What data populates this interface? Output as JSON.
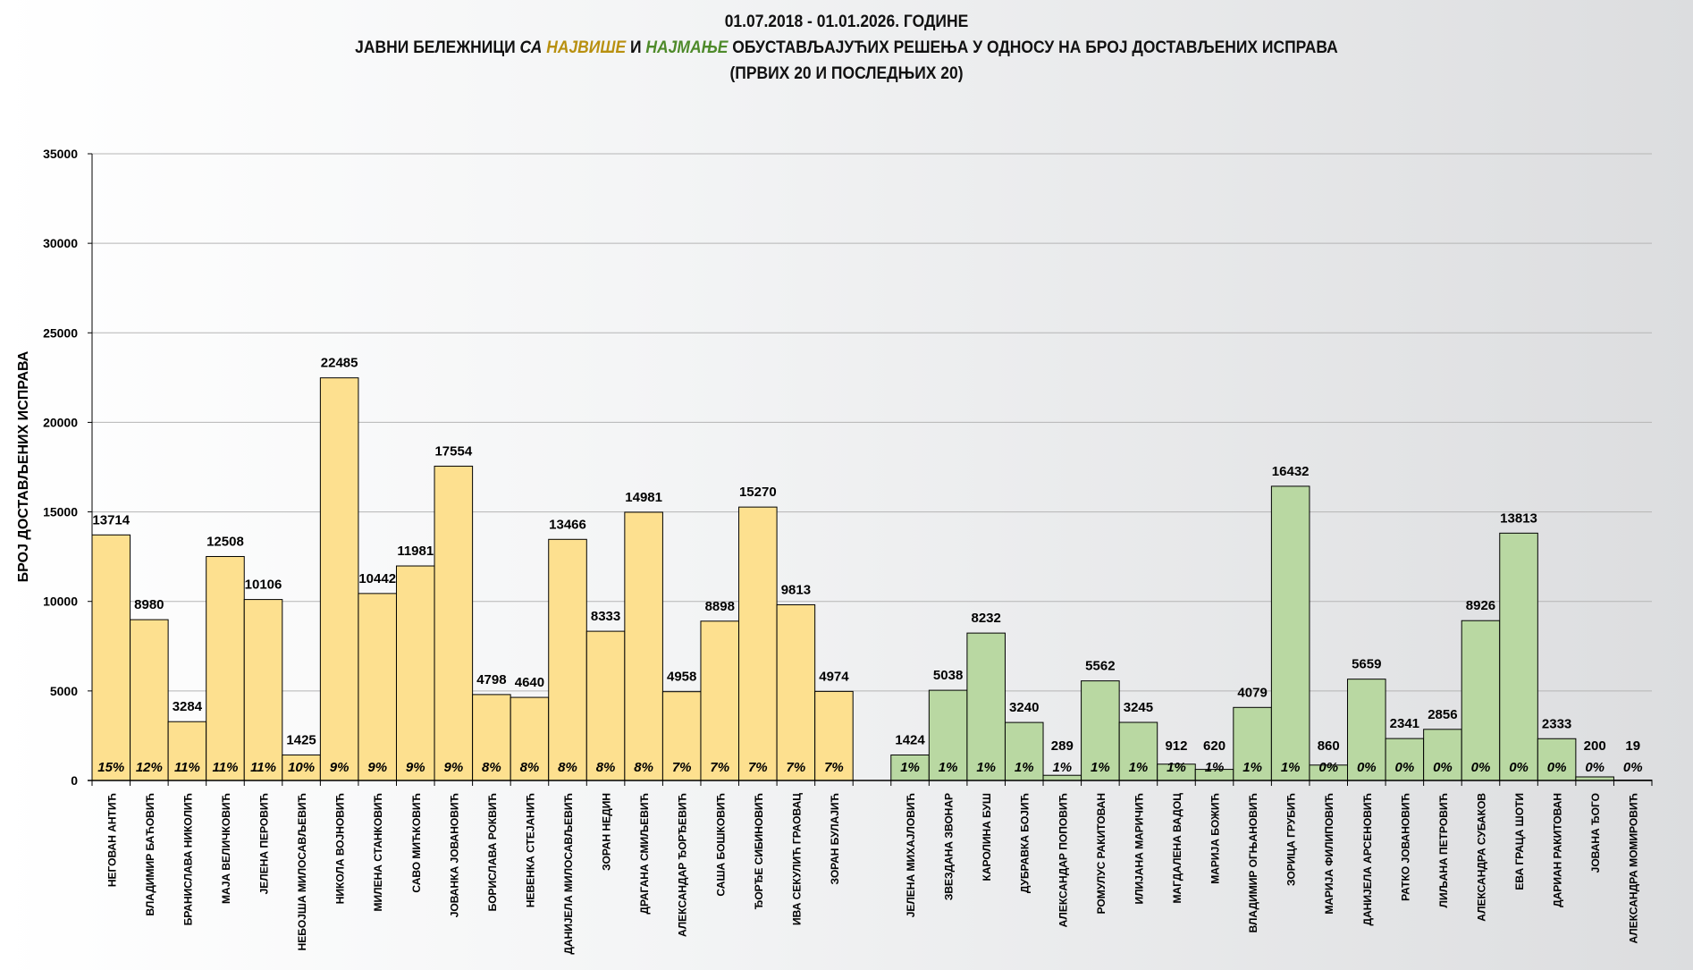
{
  "title": {
    "line1": "01.07.2018  - 01.01.2026.  ГОДИНЕ",
    "line2_a": "ЈАВНИ БЕЛЕЖНИЦИ ",
    "line2_b": "СА ",
    "line2_c": "НАЈВИШЕ",
    "line2_d": " И ",
    "line2_e": "НАЈМАЊЕ",
    "line2_f": " ОБУСТАВЉАЈУЋИХ РЕШЕЊА У ОДНОСУ НА БРОЈ ДОСТАВЉЕНИХ ИСПРАВА",
    "line3": "(ПРВИХ 20 И ПОСЛЕДЊИХ 20)"
  },
  "colors": {
    "most": "#fde08f",
    "least": "#b9d8a2",
    "most_title": "#b8900f",
    "least_title": "#4e8a2a"
  },
  "chart_data": {
    "type": "bar",
    "ylabel": "БРОЈ ДОСТАВЉЕНИХ ИСПРАВА",
    "xlabel": "",
    "ylim": [
      0,
      35000
    ],
    "yticks": [
      0,
      5000,
      10000,
      15000,
      20000,
      25000,
      30000,
      35000
    ],
    "grid": true,
    "series": [
      {
        "group": "most",
        "categories": [
          "НЕГОВАН АНТИЋ",
          "ВЛАДИМИР БАЋОВИЋ",
          "БРАНИСЛАВА НИКОЛИЋ",
          "МАЈА ВЕЛИЧКОВИЋ",
          "ЈЕЛЕНА ПЕРОВИЋ",
          "НЕБОЈША МИЛОСАВЉЕВИЋ",
          "НИКОЛА ВОЈНОВИЋ",
          "МИЛЕНА СТАНКОВИЋ",
          "САВО МИЋКОВИЋ",
          "ЈОВАНКА ЈОВАНОВИЋ",
          "БОРИСЛАВА РОКВИЋ",
          "НЕВЕНКА СТЕЈАНИЋ",
          "ДАНИЈЕЛА МИЛОСАВЉЕВИЋ",
          "ЗОРАН НЕДИН",
          "ДРАГАНА СМИЉЕВИЋ",
          "АЛЕКСАНДАР ЂОРЂЕВИЋ",
          "САША БОШКОВИЋ",
          "ЂОРЂЕ СИБИНОВИЋ",
          "ИВА СЕКУЛИЋ ГРАОВАЦ",
          "ЗОРАН БУЛАЈИЋ"
        ],
        "values": [
          13714,
          8980,
          3284,
          12508,
          10106,
          1425,
          22485,
          10442,
          11981,
          17554,
          4798,
          4640,
          13466,
          8333,
          14981,
          4958,
          8898,
          15270,
          9813,
          4974
        ],
        "percent_labels": [
          "15%",
          "12%",
          "11%",
          "11%",
          "11%",
          "10%",
          "9%",
          "9%",
          "9%",
          "9%",
          "8%",
          "8%",
          "8%",
          "8%",
          "8%",
          "7%",
          "7%",
          "7%",
          "7%",
          "7%"
        ]
      },
      {
        "group": "least",
        "categories": [
          "ЈЕЛЕНА МИХАЈЛОВИЋ",
          "ЗВЕЗДАНА ЗВОНАР",
          "КАРОЛИНА БУШ",
          "ДУБРАВКА БОЈИЋ",
          "АЛЕКСАНДАР ПОПОВИЋ",
          "РОМУЛУС РАКИТОВАН",
          "ИЛИЈАНА МАРИЧИЋ",
          "МАГДАЛЕНА ВАДОЦ",
          "МАРИЈА БОЖИЋ",
          "ВЛАДИМИР ОГЊАНОВИЋ",
          "ЗОРИЦА ГРУБИЋ",
          "МАРИЈА ФИЛИПОВИЋ",
          "ДАНИЈЕЛА АРСЕНОВИЋ",
          "РАТКО ЈОВАНОВИЋ",
          "ЛИЉАНА ПЕТРОВИЋ",
          "АЛЕКСАНДРА СУБАКОВ",
          "ЕВА ГРАЦА ШОТИ",
          "ДАРИАН РАКИТОВАН",
          "ЈОВАНА ЂОГО",
          "АЛЕКСАНДРА МОМИРОВИЋ"
        ],
        "values": [
          1424,
          5038,
          8232,
          3240,
          289,
          5562,
          3245,
          912,
          620,
          4079,
          16432,
          860,
          5659,
          2341,
          2856,
          8926,
          13813,
          2333,
          200,
          19
        ],
        "percent_labels": [
          "1%",
          "1%",
          "1%",
          "1%",
          "1%",
          "1%",
          "1%",
          "1%",
          "1%",
          "1%",
          "1%",
          "0%",
          "0%",
          "0%",
          "0%",
          "0%",
          "0%",
          "0%",
          "0%",
          "0%"
        ]
      }
    ]
  }
}
